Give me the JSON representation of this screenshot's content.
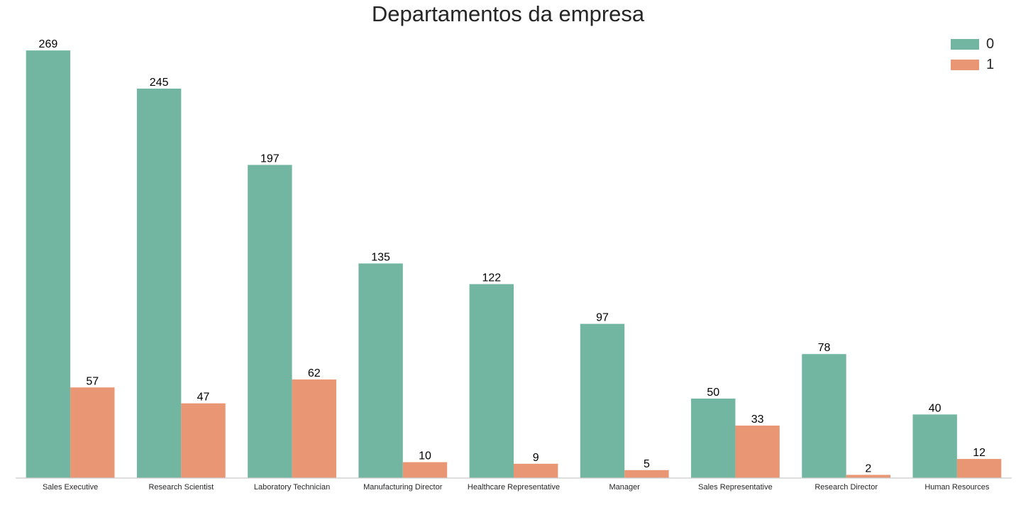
{
  "chart_data": {
    "type": "bar",
    "title": "Departamentos da empresa",
    "xlabel": "",
    "ylabel": "",
    "categories": [
      "Sales Executive",
      "Research Scientist",
      "Laboratory Technician",
      "Manufacturing Director",
      "Healthcare Representative",
      "Manager",
      "Sales Representative",
      "Research Director",
      "Human Resources"
    ],
    "series": [
      {
        "name": "0",
        "color": "#72b6a1",
        "values": [
          269,
          245,
          197,
          135,
          122,
          97,
          50,
          78,
          40
        ]
      },
      {
        "name": "1",
        "color": "#e99675",
        "values": [
          57,
          47,
          62,
          10,
          9,
          5,
          33,
          2,
          12
        ]
      }
    ],
    "ylim": [
      0,
      282
    ],
    "grid": false,
    "data_labels": true,
    "legend_position": "top-right"
  }
}
